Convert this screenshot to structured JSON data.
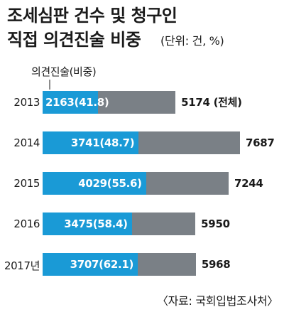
{
  "title_line1": "조세심판 건수 및 청구인",
  "title_line2": "직접 의견진술 비중",
  "unit": "(단위: 건, %)",
  "callout": "의견진술(비중)",
  "source": "〈자료: 국회입법조사처〉",
  "chart_data": {
    "type": "bar",
    "orientation": "horizontal",
    "stacked": "overlay",
    "categories": [
      "2013",
      "2014",
      "2015",
      "2016",
      "2017년"
    ],
    "series": [
      {
        "name": "의견진술(비중)",
        "values": [
          2163,
          3741,
          4029,
          3475,
          3707
        ],
        "share": [
          41.8,
          48.7,
          55.6,
          58.4,
          62.1
        ],
        "color": "#1a9ad6"
      },
      {
        "name": "전체",
        "values": [
          5174,
          7687,
          7244,
          5950,
          5968
        ],
        "color": "#7a8086"
      }
    ],
    "value_labels": [
      "2163(41.8)",
      "3741(48.7)",
      "4029(55.6)",
      "3475(58.4)",
      "3707(62.1)"
    ],
    "total_labels": [
      "5174 (전체)",
      "7687",
      "7244",
      "5950",
      "5968"
    ],
    "xlim": [
      0,
      7687
    ],
    "grid": false,
    "legend": "none"
  }
}
